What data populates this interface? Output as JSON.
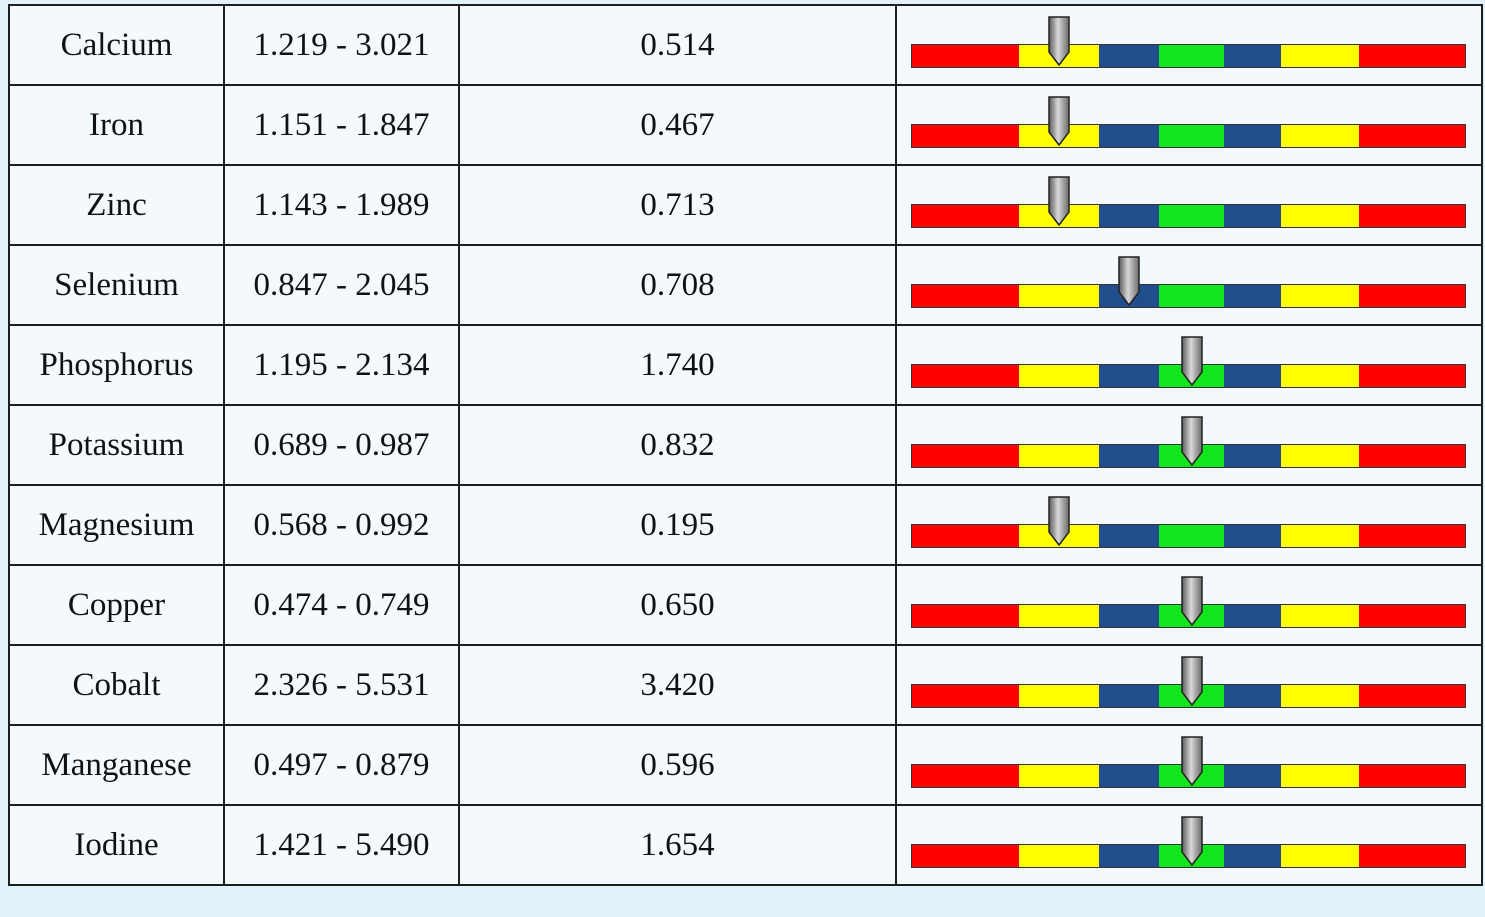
{
  "zones": [
    {
      "name": "low-critical",
      "color": "#ff0000",
      "weight": 107
    },
    {
      "name": "low",
      "color": "#ffff00",
      "weight": 80
    },
    {
      "name": "low-normal",
      "color": "#1f4e8c",
      "weight": 60
    },
    {
      "name": "optimal",
      "color": "#11e51d",
      "weight": 65
    },
    {
      "name": "high-normal",
      "color": "#1f4e8c",
      "weight": 57
    },
    {
      "name": "high",
      "color": "#ffff00",
      "weight": 78
    },
    {
      "name": "high-critical",
      "color": "#ff0000",
      "weight": 106
    }
  ],
  "rows": [
    {
      "name": "Calcium",
      "range": "1.219 - 3.021",
      "value": "0.514",
      "zone": "low"
    },
    {
      "name": "Iron",
      "range": "1.151 - 1.847",
      "value": "0.467",
      "zone": "low"
    },
    {
      "name": "Zinc",
      "range": "1.143 - 1.989",
      "value": "0.713",
      "zone": "low"
    },
    {
      "name": "Selenium",
      "range": "0.847 - 2.045",
      "value": "0.708",
      "zone": "low-normal"
    },
    {
      "name": "Phosphorus",
      "range": "1.195 - 2.134",
      "value": "1.740",
      "zone": "optimal"
    },
    {
      "name": "Potassium",
      "range": "0.689 - 0.987",
      "value": "0.832",
      "zone": "optimal"
    },
    {
      "name": "Magnesium",
      "range": "0.568 - 0.992",
      "value": "0.195",
      "zone": "low"
    },
    {
      "name": "Copper",
      "range": "0.474 - 0.749",
      "value": "0.650",
      "zone": "optimal"
    },
    {
      "name": "Cobalt",
      "range": "2.326 - 5.531",
      "value": "3.420",
      "zone": "optimal"
    },
    {
      "name": "Manganese",
      "range": "0.497 - 0.879",
      "value": "0.596",
      "zone": "optimal"
    },
    {
      "name": "Iodine",
      "range": "1.421 - 5.490",
      "value": "1.654",
      "zone": "optimal"
    }
  ]
}
